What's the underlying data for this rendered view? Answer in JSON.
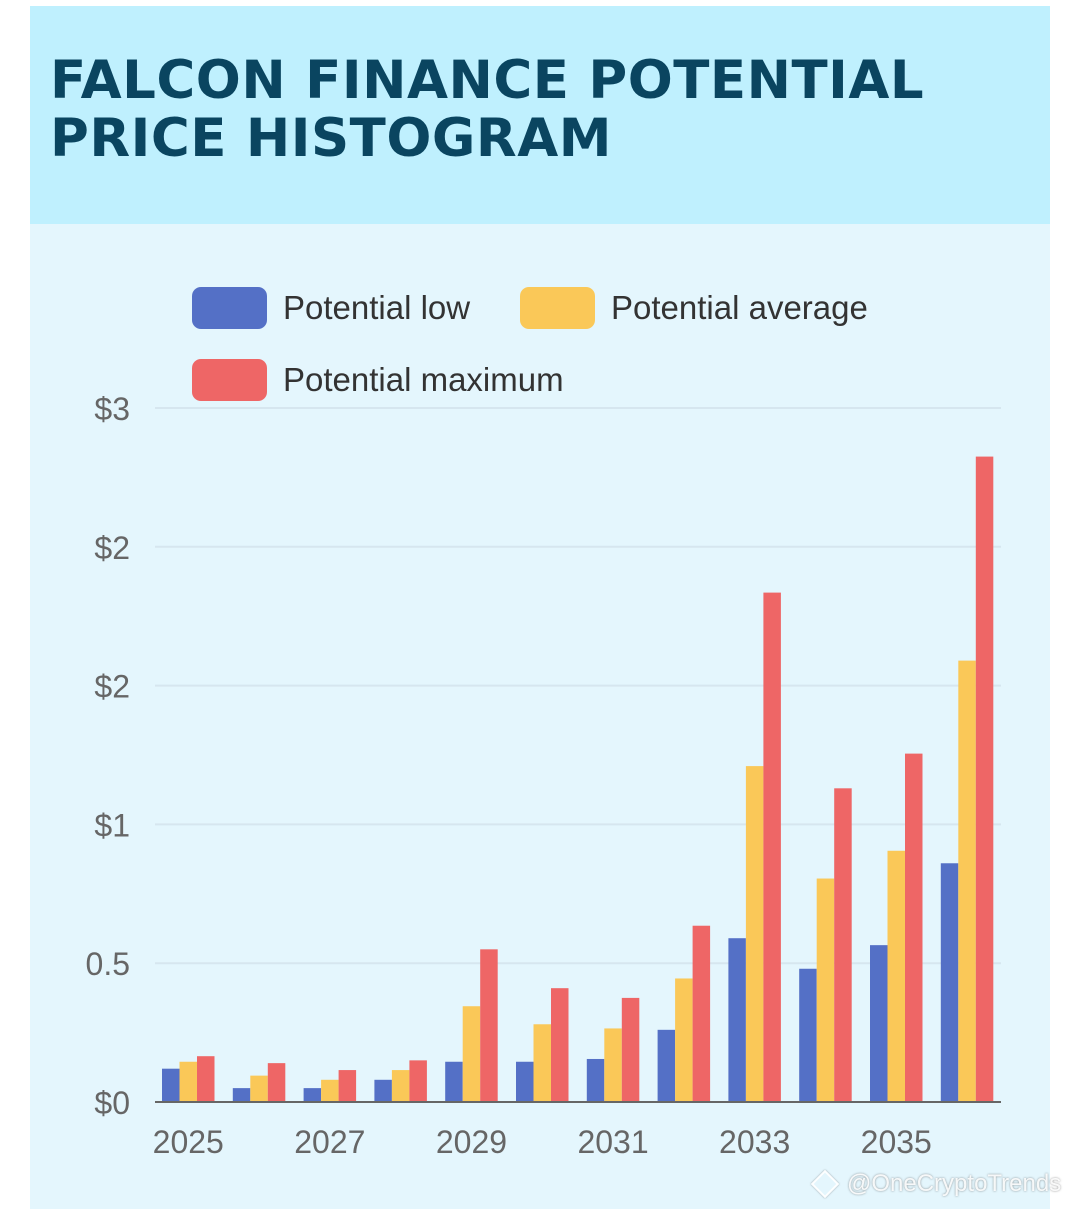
{
  "header": {
    "title": "FALCON FINANCE POTENTIAL\nPRICE HISTOGRAM"
  },
  "legend": [
    {
      "label": "Potential low",
      "color": "#5470c6"
    },
    {
      "label": "Potential average",
      "color": "#fac858"
    },
    {
      "label": "Potential maximum",
      "color": "#ee6666"
    }
  ],
  "watermark": {
    "icon": "diamond-icon",
    "text": "@OneCryptoTrends"
  },
  "chart_data": {
    "type": "bar",
    "title": "FALCON FINANCE POTENTIAL PRICE HISTOGRAM",
    "xlabel": "",
    "ylabel": "",
    "categories": [
      "2025",
      "2026",
      "2027",
      "2028",
      "2029",
      "2030",
      "2031",
      "2032",
      "2033",
      "2034",
      "2035",
      "2036"
    ],
    "x_tick_labels": [
      "2025",
      "",
      "2027",
      "",
      "2029",
      "",
      "2031",
      "",
      "2033",
      "",
      "2035",
      ""
    ],
    "y_ticks": [
      0,
      0.5,
      1,
      1.5,
      2,
      2.5
    ],
    "y_tick_labels": [
      "$0",
      "0.5",
      "$1",
      "$2",
      "$2",
      "$3"
    ],
    "ylim": [
      0,
      2.5
    ],
    "grid": true,
    "legend_position": "top",
    "series": [
      {
        "name": "Potential low",
        "color": "#5470c6",
        "values": [
          0.12,
          0.05,
          0.05,
          0.08,
          0.145,
          0.145,
          0.155,
          0.26,
          0.59,
          0.48,
          0.565,
          0.86
        ]
      },
      {
        "name": "Potential average",
        "color": "#fac858",
        "values": [
          0.145,
          0.095,
          0.08,
          0.115,
          0.345,
          0.28,
          0.265,
          0.445,
          1.21,
          0.805,
          0.905,
          1.59
        ]
      },
      {
        "name": "Potential maximum",
        "color": "#ee6666",
        "values": [
          0.165,
          0.14,
          0.115,
          0.15,
          0.55,
          0.41,
          0.375,
          0.635,
          1.835,
          1.13,
          1.255,
          2.325
        ]
      }
    ]
  }
}
